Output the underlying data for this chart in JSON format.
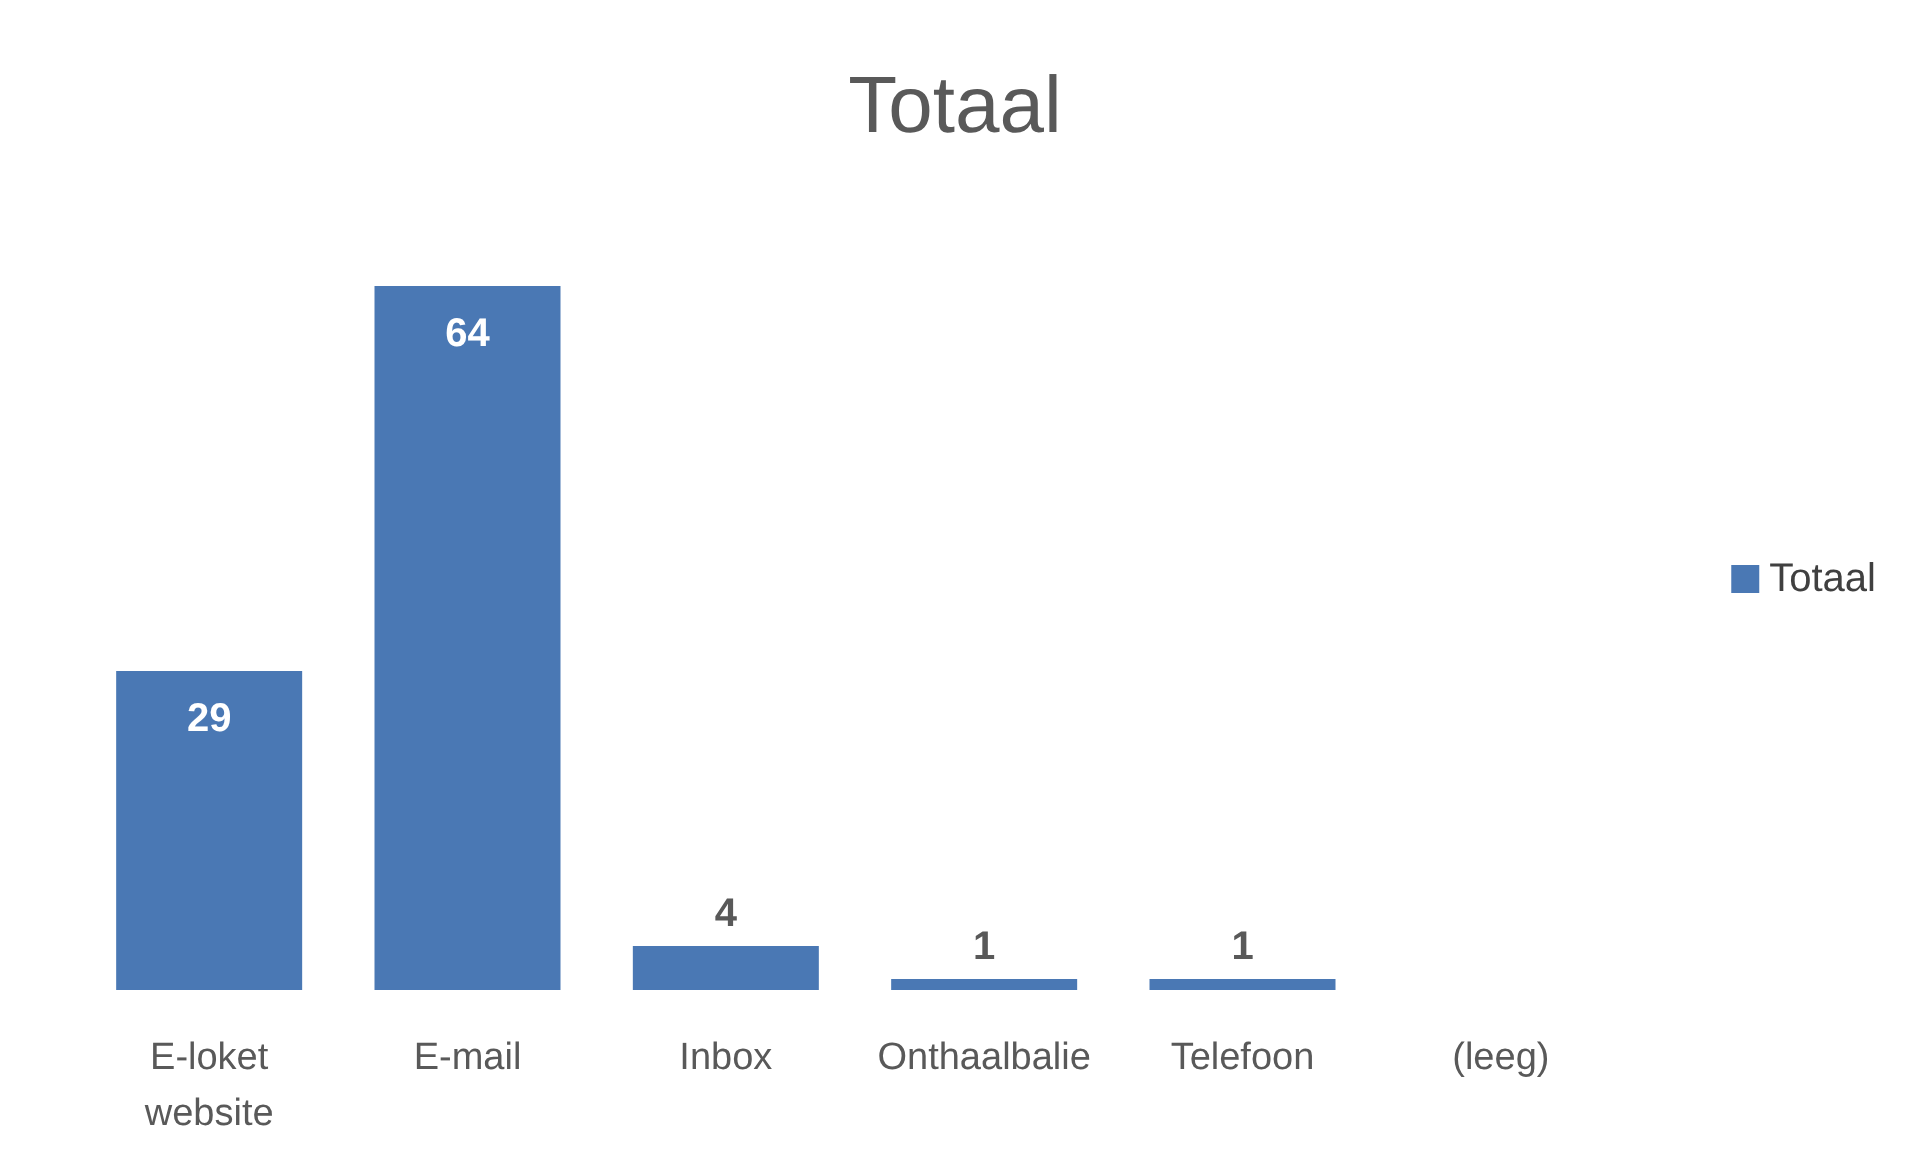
{
  "chart_data": {
    "type": "bar",
    "title": "Totaal",
    "categories": [
      "E-loket\nwebsite",
      "E-mail",
      "Inbox",
      "Onthaalbalie",
      "Telefoon",
      "(leeg)"
    ],
    "series": [
      {
        "name": "Totaal",
        "color": "#4a78b4",
        "values": [
          29,
          64,
          4,
          1,
          1,
          null
        ]
      }
    ],
    "data_labels": true,
    "legend": "right"
  }
}
